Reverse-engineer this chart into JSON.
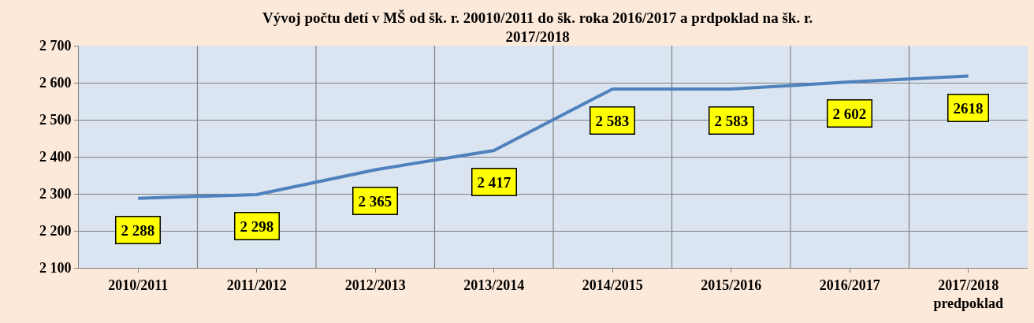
{
  "chart_data": {
    "type": "line",
    "title": "Vývoj počtu detí v MŠ od šk. r. 20010/2011 do šk. roka 2016/2017 a prdpoklad na šk. r.\n2017/2018",
    "categories": [
      "2010/2011",
      "2011/2012",
      "2012/2013",
      "2013/2014",
      "2014/2015",
      "2015/2016",
      "2016/2017",
      "2017/2018\npredpoklad"
    ],
    "series": [
      {
        "color": "#4f81bd",
        "values": [
          2288,
          2298,
          2365,
          2417,
          2583,
          2583,
          2602,
          2618
        ],
        "value_labels": [
          "2 288",
          "2 298",
          "2 365",
          "2 417",
          "2 583",
          "2 583",
          "2 602",
          "2618"
        ]
      }
    ],
    "ylim": [
      2100,
      2700
    ],
    "yticks": [
      {
        "value": 2100,
        "label": "2 100"
      },
      {
        "value": 2200,
        "label": "2 200"
      },
      {
        "value": 2300,
        "label": "2 300"
      },
      {
        "value": 2400,
        "label": "2 400"
      },
      {
        "value": 2500,
        "label": "2 500"
      },
      {
        "value": 2600,
        "label": "2 600"
      },
      {
        "value": 2700,
        "label": "2 700"
      }
    ],
    "grid": true,
    "marker": "none",
    "line_style": "solid"
  }
}
